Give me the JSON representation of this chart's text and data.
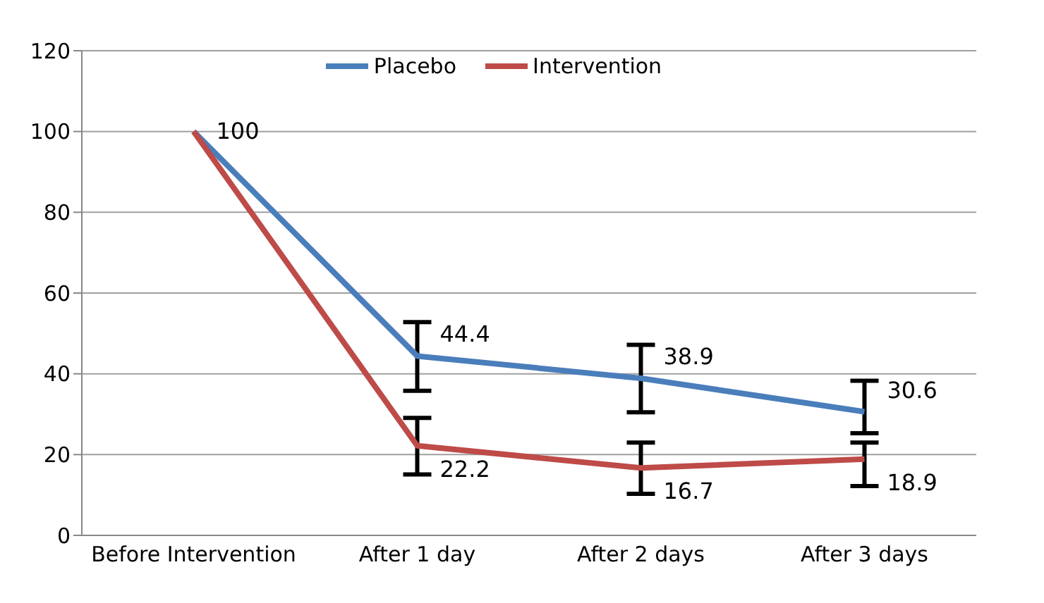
{
  "chart_data": {
    "type": "line",
    "categories": [
      "Before Intervention",
      "After 1 day",
      "After 2 days",
      "After 3 days"
    ],
    "series": [
      {
        "name": "Placebo",
        "color": "#4a7ebb",
        "values": [
          100,
          44.4,
          38.9,
          30.6
        ],
        "errors": [
          null,
          [
            35.8,
            52.8
          ],
          [
            30.5,
            47.2
          ],
          [
            25.3,
            38.3
          ]
        ],
        "value_labels": [
          "100",
          "44.4",
          "38.9",
          "30.6"
        ]
      },
      {
        "name": "Intervention",
        "color": "#be4b48",
        "values": [
          100,
          22.2,
          16.7,
          18.9
        ],
        "errors": [
          null,
          [
            15.1,
            29.1
          ],
          [
            10.3,
            23.0
          ],
          [
            12.2,
            23.0
          ]
        ],
        "value_labels": [
          null,
          "22.2",
          "16.7",
          "18.9"
        ]
      }
    ],
    "ylim": [
      0,
      120
    ],
    "yticks": [
      0,
      20,
      40,
      60,
      80,
      100,
      120
    ],
    "grid": "y",
    "legend": "top",
    "marker": "none",
    "line_style": "solid"
  }
}
